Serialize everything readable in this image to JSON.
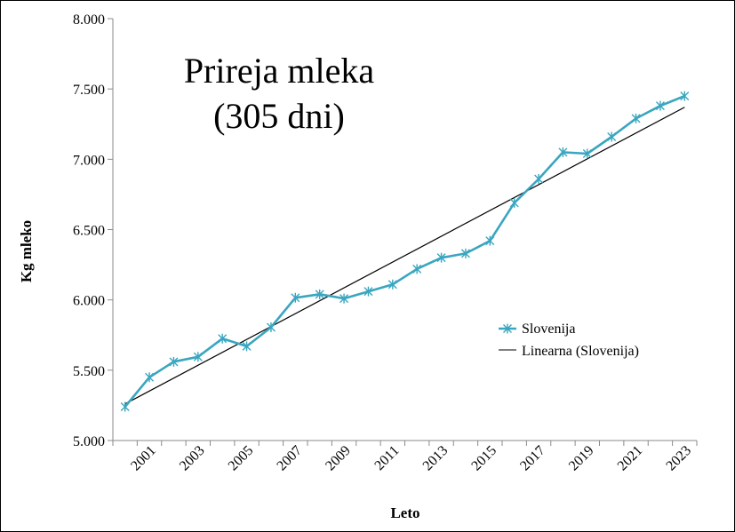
{
  "chart_data": {
    "type": "line",
    "title_lines": [
      "Prireja mleka",
      "(305 dni)"
    ],
    "xlabel": "Leto",
    "ylabel": "Kg mleko",
    "x": [
      2000,
      2001,
      2002,
      2003,
      2004,
      2005,
      2006,
      2007,
      2008,
      2009,
      2010,
      2011,
      2012,
      2013,
      2014,
      2015,
      2016,
      2017,
      2018,
      2019,
      2020,
      2021,
      2022,
      2023
    ],
    "x_tick_labels": [
      "2001",
      "2003",
      "2005",
      "2007",
      "2009",
      "2011",
      "2013",
      "2015",
      "2017",
      "2019",
      "2021",
      "2023"
    ],
    "ylim": [
      5000,
      8000
    ],
    "y_ticks": [
      5000,
      5500,
      6000,
      6500,
      7000,
      7500,
      8000
    ],
    "y_tick_labels": [
      "5.000",
      "5.500",
      "6.000",
      "6.500",
      "7.000",
      "7.500",
      "8.000"
    ],
    "series": [
      {
        "name": "Slovenija",
        "color": "#3aa6c0",
        "marker": "asterisk",
        "values": [
          5240,
          5450,
          5560,
          5595,
          5725,
          5670,
          5805,
          6015,
          6040,
          6010,
          6060,
          6110,
          6220,
          6300,
          6330,
          6420,
          6690,
          6860,
          7050,
          7040,
          7160,
          7290,
          7380,
          7450
        ]
      }
    ],
    "trendline": {
      "name": "Linearna (Slovenija)",
      "color": "#000000",
      "type": "linear",
      "start": [
        2000,
        5260
      ],
      "end": [
        2023,
        7370
      ]
    },
    "legend": {
      "position": "right",
      "entries": [
        "Slovenija",
        "Linearna (Slovenija)"
      ]
    }
  }
}
